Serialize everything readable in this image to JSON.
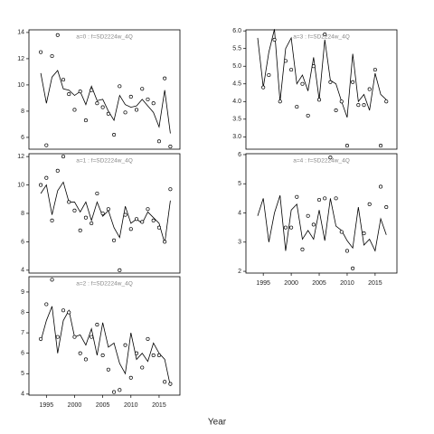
{
  "xlabel": "Year",
  "chart_data": [
    {
      "type": "line",
      "title": "a=0  :  f=SD2224w_4Q",
      "x": [
        1994,
        1995,
        1996,
        1997,
        1998,
        1999,
        2000,
        2001,
        2002,
        2003,
        2004,
        2005,
        2006,
        2007,
        2008,
        2009,
        2010,
        2011,
        2012,
        2013,
        2014,
        2015,
        2016,
        2017
      ],
      "points": [
        12.5,
        5.4,
        12.2,
        13.8,
        10.4,
        9.3,
        8.1,
        9.5,
        7.3,
        9.6,
        8.6,
        8.3,
        7.8,
        6.2,
        9.9,
        7.9,
        9.1,
        8.1,
        9.7,
        8.9,
        8.6,
        5.7,
        10.5,
        5.3
      ],
      "values": [
        10.9,
        8.6,
        10.6,
        11.1,
        9.7,
        9.6,
        9.2,
        9.5,
        8.5,
        9.9,
        8.8,
        8.9,
        8.0,
        7.3,
        9.2,
        8.5,
        8.3,
        8.4,
        8.9,
        8.4,
        7.9,
        6.8,
        9.6,
        6.3
      ],
      "xlim": [
        1991.9,
        2018.7
      ],
      "ylim": [
        5.1,
        14.2
      ],
      "yticks": [
        6,
        8,
        10,
        12,
        14
      ]
    },
    {
      "type": "line",
      "title": "a=1  :  f=SD2224w_4Q",
      "x": [
        1994,
        1995,
        1996,
        1997,
        1998,
        1999,
        2000,
        2001,
        2002,
        2003,
        2004,
        2005,
        2006,
        2007,
        2008,
        2009,
        2010,
        2011,
        2012,
        2013,
        2014,
        2015,
        2016,
        2017
      ],
      "points": [
        10.0,
        10.5,
        7.5,
        11.0,
        12.0,
        8.8,
        8.2,
        6.8,
        7.7,
        7.3,
        9.4,
        8.0,
        8.3,
        6.1,
        4.0,
        7.9,
        6.9,
        7.6,
        7.4,
        8.3,
        7.5,
        7.0,
        6.0,
        9.7
      ],
      "values": [
        9.4,
        10.0,
        7.9,
        9.6,
        10.2,
        8.8,
        8.8,
        8.1,
        8.8,
        7.5,
        8.8,
        7.8,
        8.2,
        7.0,
        6.3,
        8.5,
        7.3,
        7.6,
        7.3,
        8.1,
        7.7,
        7.3,
        5.9,
        8.9
      ],
      "xlim": [
        1991.9,
        2018.7
      ],
      "ylim": [
        3.8,
        12.2
      ],
      "yticks": [
        4,
        6,
        8,
        10,
        12
      ]
    },
    {
      "type": "line",
      "title": "a=2  :  f=SD2224w_4Q",
      "x": [
        1994,
        1995,
        1996,
        1997,
        1998,
        1999,
        2000,
        2001,
        2002,
        2003,
        2004,
        2005,
        2006,
        2007,
        2008,
        2009,
        2010,
        2011,
        2012,
        2013,
        2014,
        2015,
        2016,
        2017
      ],
      "points": [
        6.7,
        8.4,
        9.6,
        6.8,
        8.1,
        8.0,
        6.8,
        6.0,
        5.7,
        6.8,
        7.4,
        5.9,
        5.2,
        4.1,
        4.2,
        6.4,
        4.8,
        6.0,
        5.3,
        6.7,
        5.9,
        5.9,
        4.6,
        4.5
      ],
      "values": [
        6.6,
        7.6,
        8.3,
        6.0,
        7.6,
        8.1,
        6.8,
        6.9,
        6.4,
        7.2,
        5.9,
        7.5,
        6.3,
        6.5,
        5.5,
        5.0,
        7.0,
        5.7,
        6.0,
        5.6,
        6.5,
        6.0,
        5.7,
        4.4
      ],
      "xlim": [
        1991.9,
        2018.7
      ],
      "ylim": [
        3.95,
        9.75
      ],
      "yticks": [
        4,
        5,
        6,
        7,
        8,
        9
      ],
      "xticks": [
        1995,
        2000,
        2005,
        2010,
        2015
      ]
    },
    {
      "type": "line",
      "title": "a=3  :  f=SD2224w_4Q",
      "x": [
        1994,
        1995,
        1996,
        1997,
        1998,
        1999,
        2000,
        2001,
        2002,
        2003,
        2004,
        2005,
        2006,
        2007,
        2008,
        2009,
        2010,
        2011,
        2012,
        2013,
        2014,
        2015,
        2016,
        2017
      ],
      "points": [
        null,
        4.4,
        4.75,
        5.75,
        4.0,
        5.15,
        4.9,
        3.85,
        4.5,
        3.6,
        5.0,
        4.05,
        5.9,
        4.55,
        3.75,
        4.0,
        2.75,
        4.55,
        3.9,
        3.9,
        4.35,
        4.9,
        2.75,
        4.0
      ],
      "values": [
        5.8,
        4.4,
        5.4,
        6.05,
        4.0,
        5.5,
        5.8,
        4.5,
        4.75,
        4.3,
        5.25,
        4.05,
        5.75,
        4.6,
        4.5,
        4.0,
        3.55,
        5.35,
        4.0,
        4.2,
        3.75,
        4.8,
        4.2,
        4.05
      ],
      "xlim": [
        1991.9,
        2018.9
      ],
      "ylim": [
        2.65,
        6.03
      ],
      "yticks": [
        {
          "value": 3,
          "label": "3.0"
        },
        3.5,
        {
          "value": 4,
          "label": "4.0"
        },
        4.5,
        {
          "value": 5,
          "label": "5.0"
        },
        5.5,
        {
          "value": 6,
          "label": "6.0"
        }
      ]
    },
    {
      "type": "line",
      "title": "a=4  :  f=SD2224w_4Q",
      "x": [
        1994,
        1995,
        1996,
        1997,
        1998,
        1999,
        2000,
        2001,
        2002,
        2003,
        2004,
        2005,
        2006,
        2007,
        2008,
        2009,
        2010,
        2011,
        2012,
        2013,
        2014,
        2015,
        2016,
        2017
      ],
      "points": [
        null,
        null,
        null,
        null,
        null,
        3.5,
        3.5,
        4.55,
        2.75,
        3.9,
        3.6,
        4.45,
        4.5,
        5.9,
        4.5,
        3.35,
        2.7,
        2.1,
        null,
        3.3,
        4.3,
        null,
        4.9,
        4.2
      ],
      "values": [
        3.9,
        4.5,
        3.0,
        4.0,
        4.6,
        2.7,
        4.1,
        4.3,
        3.1,
        3.4,
        3.1,
        4.1,
        3.05,
        4.5,
        3.55,
        3.4,
        3.05,
        2.8,
        4.2,
        2.9,
        3.1,
        2.7,
        3.8,
        3.25
      ],
      "xlim": [
        1991.9,
        2018.9
      ],
      "ylim": [
        1.94,
        6.03
      ],
      "yticks": [
        2,
        3,
        4,
        5,
        6
      ],
      "xticks": [
        1995,
        2000,
        2005,
        2010,
        2015
      ]
    }
  ]
}
